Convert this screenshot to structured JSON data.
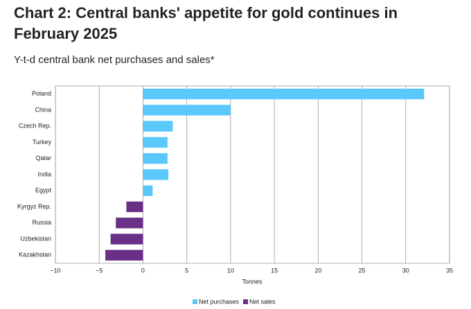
{
  "chart_data": {
    "type": "hbar",
    "title": "Chart 2: Central banks' appetite for gold continues in February 2025",
    "subtitle": "Y-t-d central bank net purchases and sales*",
    "x_label": "Tonnes",
    "categories": [
      "Poland",
      "China",
      "Czech Rep.",
      "Turkey",
      "Qatar",
      "India",
      "Egypt",
      "Kyrgyz Rep.",
      "Russia",
      "Uzbekistan",
      "Kazakhstan"
    ],
    "series": [
      {
        "name": "Net purchases",
        "color": "#5ac8fa",
        "values": [
          32.1,
          10.0,
          3.4,
          2.8,
          2.8,
          2.9,
          1.1,
          null,
          null,
          null,
          null
        ]
      },
      {
        "name": "Net sales",
        "color": "#6a2f86",
        "values": [
          null,
          null,
          null,
          null,
          null,
          null,
          null,
          -1.9,
          -3.1,
          -3.7,
          -4.3
        ]
      }
    ],
    "xlim": [
      -10,
      35
    ],
    "xticks": [
      {
        "value": -10,
        "label": "−10"
      },
      {
        "value": -5,
        "label": "−5"
      },
      0,
      5,
      10,
      15,
      20,
      25,
      30,
      35
    ],
    "grid": true,
    "legend": "bottom"
  }
}
